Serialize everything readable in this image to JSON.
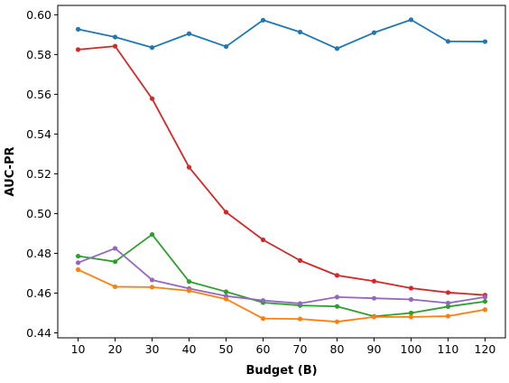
{
  "chart_data": {
    "type": "line",
    "title": "",
    "xlabel": "Budget (B)",
    "ylabel": "AUC-PR",
    "x": [
      10,
      20,
      30,
      40,
      50,
      60,
      70,
      80,
      90,
      100,
      110,
      120
    ],
    "x_ticks": [
      "10",
      "20",
      "30",
      "40",
      "50",
      "60",
      "70",
      "80",
      "90",
      "100",
      "110",
      "120"
    ],
    "y_ticks": [
      "0.44",
      "0.46",
      "0.48",
      "0.50",
      "0.52",
      "0.54",
      "0.56",
      "0.58",
      "0.60"
    ],
    "y_tick_values": [
      0.44,
      0.46,
      0.48,
      0.5,
      0.52,
      0.54,
      0.56,
      0.58,
      0.6
    ],
    "xlim": [
      4.5,
      125.5
    ],
    "ylim": [
      0.4375,
      0.6047
    ],
    "grid": false,
    "legend": "none",
    "series": [
      {
        "color": "#1f77b4",
        "values": [
          0.5927,
          0.5888,
          0.5835,
          0.5905,
          0.584,
          0.5973,
          0.5913,
          0.583,
          0.591,
          0.5975,
          0.5866,
          0.5865
        ]
      },
      {
        "color": "#d62728",
        "values": [
          0.5825,
          0.5842,
          0.5578,
          0.5233,
          0.5007,
          0.4868,
          0.4764,
          0.4689,
          0.466,
          0.4625,
          0.4603,
          0.459
        ]
      },
      {
        "color": "#2ca02c",
        "values": [
          0.4786,
          0.4758,
          0.4895,
          0.4658,
          0.4607,
          0.4552,
          0.4538,
          0.4533,
          0.4483,
          0.45,
          0.4532,
          0.4558
        ]
      },
      {
        "color": "#9467bd",
        "values": [
          0.4753,
          0.4825,
          0.4666,
          0.4623,
          0.4585,
          0.4563,
          0.4548,
          0.458,
          0.4574,
          0.4568,
          0.455,
          0.458
        ]
      },
      {
        "color": "#ff7f0e",
        "values": [
          0.4718,
          0.4632,
          0.463,
          0.4612,
          0.457,
          0.4472,
          0.447,
          0.4456,
          0.448,
          0.448,
          0.4484,
          0.4517
        ]
      }
    ]
  }
}
